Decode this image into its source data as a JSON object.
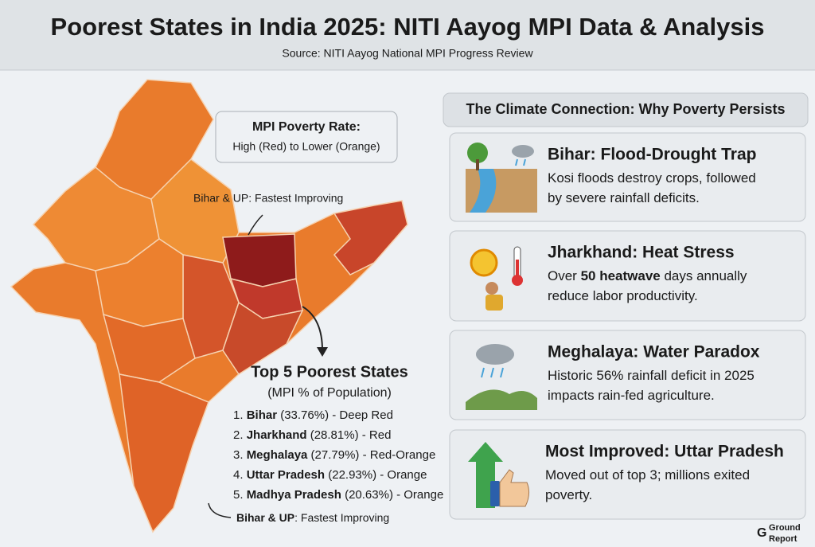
{
  "header": {
    "title": "Poorest States in India 2025: NITI Aayog MPI Data & Analysis",
    "subtitle": "Source: NITI Aayog National MPI Progress Review"
  },
  "legend": {
    "title": "MPI Poverty Rate:",
    "text": "High (Red) to Lower (Orange)"
  },
  "annotation": "Bihar & UP: Fastest Improving",
  "ranking": {
    "title": "Top 5 Poorest States",
    "subtitle": "(MPI % of Population)",
    "items": [
      [
        {
          "text": "1. ",
          "bold": false
        },
        {
          "text": "Bihar",
          "bold": true
        },
        {
          "text": " (33.76%) - Deep Red",
          "bold": false
        }
      ],
      [
        {
          "text": "2. ",
          "bold": false
        },
        {
          "text": "Jharkhand",
          "bold": true
        },
        {
          "text": " (28.81%) - Red",
          "bold": false
        }
      ],
      [
        {
          "text": "3. ",
          "bold": false
        },
        {
          "text": "Meghalaya",
          "bold": true
        },
        {
          "text": " (27.79%) - Red-Orange",
          "bold": false
        }
      ],
      [
        {
          "text": "4. ",
          "bold": false
        },
        {
          "text": "Uttar Pradesh",
          "bold": true
        },
        {
          "text": " (22.93%) - Orange",
          "bold": false
        }
      ],
      [
        {
          "text": "5. ",
          "bold": false
        },
        {
          "text": "Madhya Pradesh",
          "bold": true
        },
        {
          "text": " (20.63%) - Orange",
          "bold": false
        }
      ]
    ]
  },
  "footer_note": [
    {
      "text": "Bihar & UP",
      "bold": true
    },
    {
      "text": ": Fastest Improving",
      "bold": false
    }
  ],
  "panel": {
    "title": "The Climate Connection: Why Poverty Persists",
    "cards": [
      {
        "title": "Bihar: Flood-Drought Trap",
        "lines": [
          [
            {
              "text": "Kosi floods destroy crops, followed",
              "bold": false
            }
          ],
          [
            {
              "text": "by severe rainfall deficits.",
              "bold": false
            }
          ]
        ]
      },
      {
        "title": "Jharkhand: Heat Stress",
        "lines": [
          [
            {
              "text": "Over ",
              "bold": false
            },
            {
              "text": "50 heatwave",
              "bold": true
            },
            {
              "text": " days annually",
              "bold": false
            }
          ],
          [
            {
              "text": "reduce labor productivity.",
              "bold": false
            }
          ]
        ]
      },
      {
        "title": "Meghalaya: Water Paradox",
        "lines": [
          [
            {
              "text": "Historic 56% rainfall deficit in 2025",
              "bold": false
            }
          ],
          [
            {
              "text": "impacts rain-fed agriculture.",
              "bold": false
            }
          ]
        ]
      },
      {
        "title": "Most Improved: Uttar Pradesh",
        "lines": [
          [
            {
              "text": "Moved out of top 3; millions exited",
              "bold": false
            }
          ],
          [
            {
              "text": "poverty.",
              "bold": false
            }
          ]
        ]
      }
    ]
  },
  "logo": {
    "line1": "Ground",
    "line2": "Report"
  }
}
